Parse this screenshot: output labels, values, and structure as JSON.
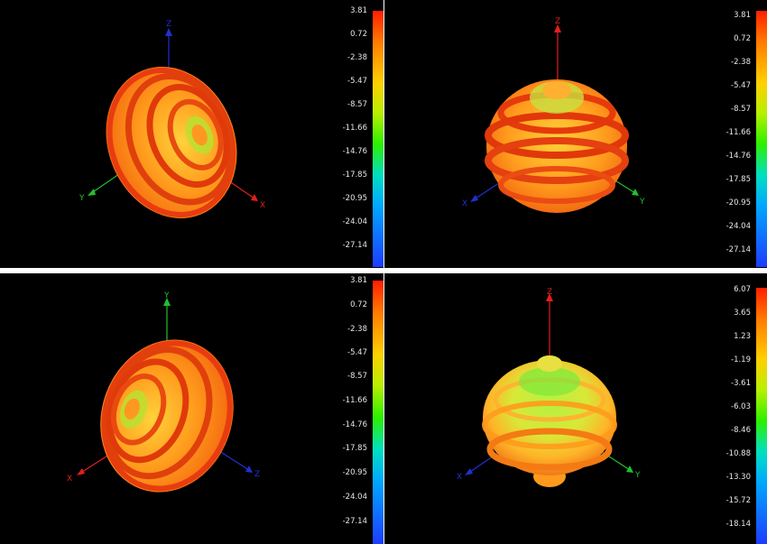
{
  "panels": [
    {
      "id": "p1",
      "axes": {
        "up": "Z",
        "left": "Y",
        "right": "X"
      },
      "colorbar": {
        "ticks": [
          "3.81",
          "0.72",
          "-2.38",
          "-5.47",
          "-8.57",
          "-11.66",
          "-14.76",
          "-17.85",
          "-20.95",
          "-24.04",
          "-27.14"
        ]
      }
    },
    {
      "id": "p2",
      "axes": {
        "up": "Z",
        "left": "X",
        "right": "Y"
      },
      "colorbar": {
        "ticks": [
          "3.81",
          "0.72",
          "-2.38",
          "-5.47",
          "-8.57",
          "-11.66",
          "-14.76",
          "-17.85",
          "-20.95",
          "-24.04",
          "-27.14"
        ]
      }
    },
    {
      "id": "p3",
      "axes": {
        "up": "Y",
        "left": "X",
        "right": "Z"
      },
      "colorbar": {
        "ticks": [
          "3.81",
          "0.72",
          "-2.38",
          "-5.47",
          "-8.57",
          "-11.66",
          "-14.76",
          "-17.85",
          "-20.95",
          "-24.04",
          "-27.14"
        ]
      }
    },
    {
      "id": "p4",
      "axes": {
        "up": "Z",
        "left": "X",
        "right": "Y"
      },
      "colorbar": {
        "ticks": [
          "6.07",
          "3.65",
          "1.23",
          "-1.19",
          "-3.61",
          "-6.03",
          "-8.46",
          "-10.88",
          "-13.30",
          "-15.72",
          "-18.14"
        ]
      }
    }
  ],
  "colors": {
    "background": "#000000",
    "x_axis": "#e0201a",
    "y_axis": "#20c030",
    "z_axis": "#2030d0",
    "tick_text": "#e6e6e6"
  }
}
